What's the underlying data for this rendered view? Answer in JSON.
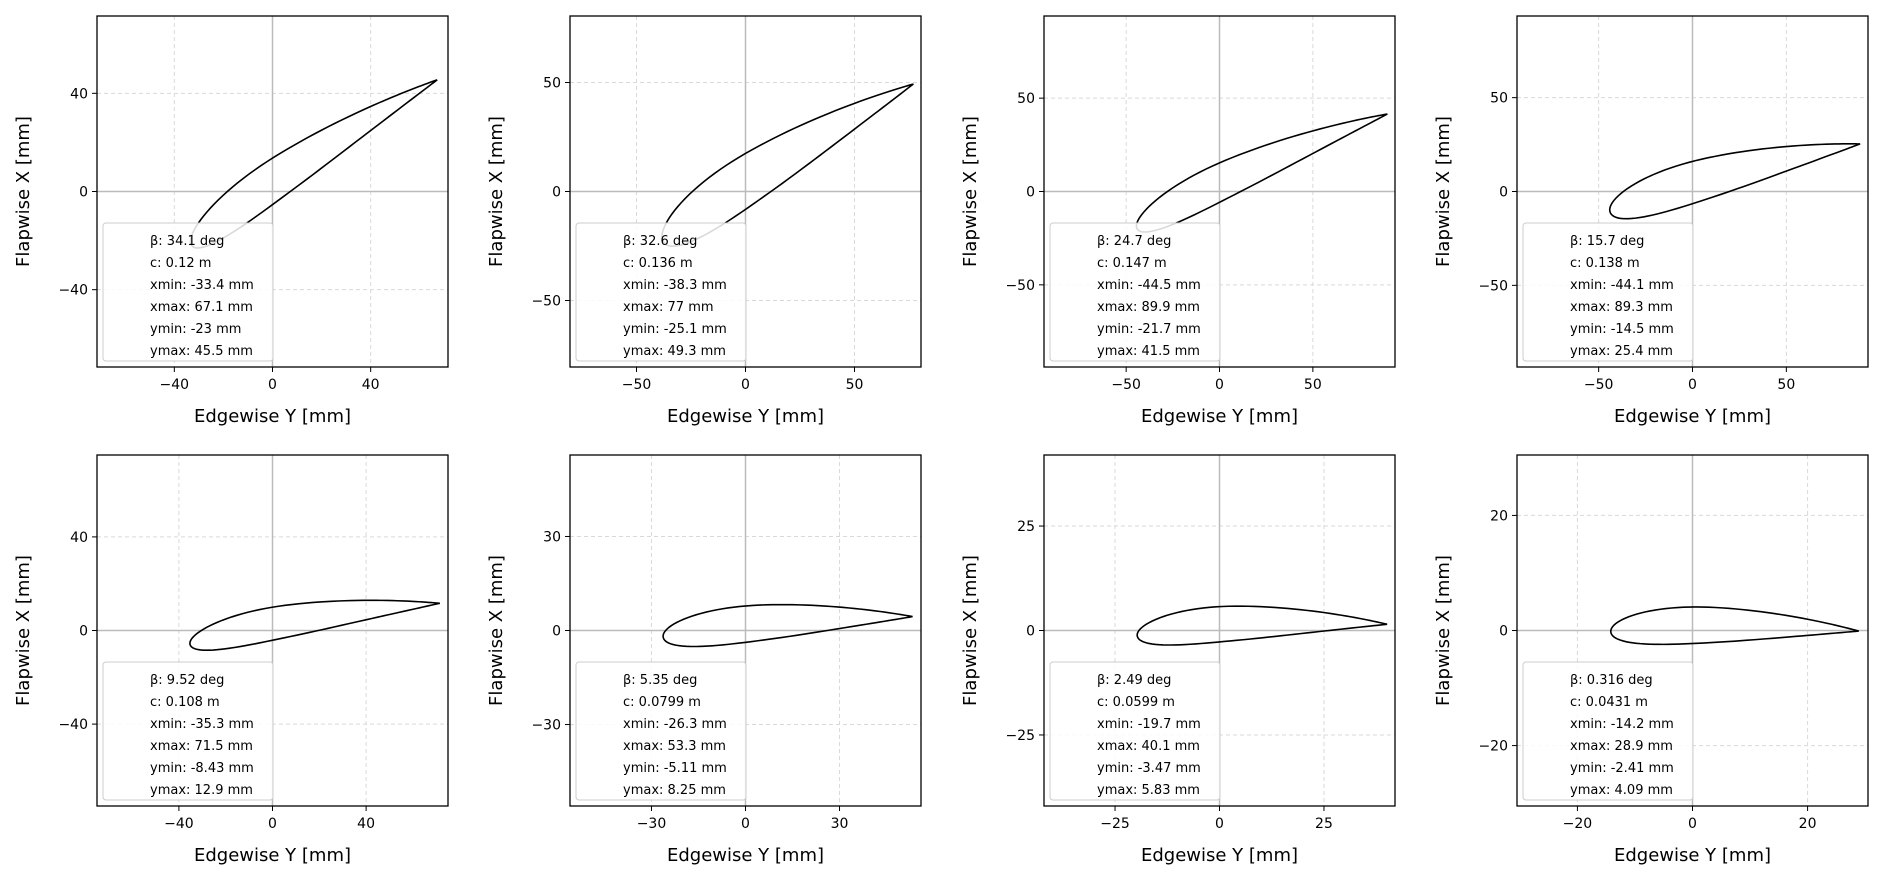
{
  "figure": {
    "xlabel": "Edgewise Y [mm]",
    "ylabel": "Flapwise X [mm]",
    "colors": {
      "curve": "#000000",
      "grid": "#d9d9d9",
      "zero_line": "#bbbbbb",
      "legend_border": "#cccccc"
    }
  },
  "chart_data": [
    {
      "type": "line",
      "xlabel": "Edgewise Y [mm]",
      "ylabel": "Flapwise X [mm]",
      "xlim": [
        -71.5,
        71.5
      ],
      "ylim": [
        -71.5,
        71.5
      ],
      "xticks": [
        -40,
        0,
        40
      ],
      "yticks": [
        -40,
        0,
        40
      ],
      "grid": true,
      "legend_placement": "lower-left",
      "annotation": [
        "β: 34.1 deg",
        "c: 0.12 m",
        "xmin: -33.4 mm",
        "xmax: 67.1 mm",
        "ymin: -23 mm",
        "ymax: 45.5 mm"
      ],
      "beta_deg": 34.1,
      "chord_m": 0.12,
      "xmin": -33.4,
      "xmax": 67.1,
      "ymin": -23,
      "ymax": 45.5
    },
    {
      "type": "line",
      "xlabel": "Edgewise Y [mm]",
      "ylabel": "Flapwise X [mm]",
      "xlim": [
        -80.5,
        80.5
      ],
      "ylim": [
        -80.5,
        80.5
      ],
      "xticks": [
        -50,
        0,
        50
      ],
      "yticks": [
        -50,
        0,
        50
      ],
      "grid": true,
      "legend_placement": "lower-left",
      "annotation": [
        "β: 32.6 deg",
        "c: 0.136 m",
        "xmin: -38.3 mm",
        "xmax: 77 mm",
        "ymin: -25.1 mm",
        "ymax: 49.3 mm"
      ],
      "beta_deg": 32.6,
      "chord_m": 0.136,
      "xmin": -38.3,
      "xmax": 77,
      "ymin": -25.1,
      "ymax": 49.3
    },
    {
      "type": "line",
      "xlabel": "Edgewise Y [mm]",
      "ylabel": "Flapwise X [mm]",
      "xlim": [
        -94,
        94
      ],
      "ylim": [
        -94,
        94
      ],
      "xticks": [
        -50,
        0,
        50
      ],
      "yticks": [
        -50,
        0,
        50
      ],
      "grid": true,
      "legend_placement": "lower-left",
      "annotation": [
        "β: 24.7 deg",
        "c: 0.147 m",
        "xmin: -44.5 mm",
        "xmax: 89.9 mm",
        "ymin: -21.7 mm",
        "ymax: 41.5 mm"
      ],
      "beta_deg": 24.7,
      "chord_m": 0.147,
      "xmin": -44.5,
      "xmax": 89.9,
      "ymin": -21.7,
      "ymax": 41.5
    },
    {
      "type": "line",
      "xlabel": "Edgewise Y [mm]",
      "ylabel": "Flapwise X [mm]",
      "xlim": [
        -93.5,
        93.5
      ],
      "ylim": [
        -93.5,
        93.5
      ],
      "xticks": [
        -50,
        0,
        50
      ],
      "yticks": [
        -50,
        0,
        50
      ],
      "grid": true,
      "legend_placement": "lower-left",
      "annotation": [
        "β: 15.7 deg",
        "c: 0.138 m",
        "xmin: -44.1 mm",
        "xmax: 89.3 mm",
        "ymin: -14.5 mm",
        "ymax: 25.4 mm"
      ],
      "beta_deg": 15.7,
      "chord_m": 0.138,
      "xmin": -44.1,
      "xmax": 89.3,
      "ymin": -14.5,
      "ymax": 25.4
    },
    {
      "type": "line",
      "xlabel": "Edgewise Y [mm]",
      "ylabel": "Flapwise X [mm]",
      "xlim": [
        -75,
        75
      ],
      "ylim": [
        -75,
        75
      ],
      "xticks": [
        -40,
        0,
        40
      ],
      "yticks": [
        -40,
        0,
        40
      ],
      "grid": true,
      "legend_placement": "lower-left",
      "annotation": [
        "β: 9.52 deg",
        "c: 0.108 m",
        "xmin: -35.3 mm",
        "xmax: 71.5 mm",
        "ymin: -8.43 mm",
        "ymax: 12.9 mm"
      ],
      "beta_deg": 9.52,
      "chord_m": 0.108,
      "xmin": -35.3,
      "xmax": 71.5,
      "ymin": -8.43,
      "ymax": 12.9
    },
    {
      "type": "line",
      "xlabel": "Edgewise Y [mm]",
      "ylabel": "Flapwise X [mm]",
      "xlim": [
        -56,
        56
      ],
      "ylim": [
        -56,
        56
      ],
      "xticks": [
        -30,
        0,
        30
      ],
      "yticks": [
        -30,
        0,
        30
      ],
      "grid": true,
      "legend_placement": "lower-left",
      "annotation": [
        "β: 5.35 deg",
        "c: 0.0799 m",
        "xmin: -26.3 mm",
        "xmax: 53.3 mm",
        "ymin: -5.11 mm",
        "ymax: 8.25 mm"
      ],
      "beta_deg": 5.35,
      "chord_m": 0.0799,
      "xmin": -26.3,
      "xmax": 53.3,
      "ymin": -5.11,
      "ymax": 8.25
    },
    {
      "type": "line",
      "xlabel": "Edgewise Y [mm]",
      "ylabel": "Flapwise X [mm]",
      "xlim": [
        -42,
        42
      ],
      "ylim": [
        -42,
        42
      ],
      "xticks": [
        -25,
        0,
        25
      ],
      "yticks": [
        -25,
        0,
        25
      ],
      "grid": true,
      "legend_placement": "lower-left",
      "annotation": [
        "β: 2.49 deg",
        "c: 0.0599 m",
        "xmin: -19.7 mm",
        "xmax: 40.1 mm",
        "ymin: -3.47 mm",
        "ymax: 5.83 mm"
      ],
      "beta_deg": 2.49,
      "chord_m": 0.0599,
      "xmin": -19.7,
      "xmax": 40.1,
      "ymin": -3.47,
      "ymax": 5.83
    },
    {
      "type": "line",
      "xlabel": "Edgewise Y [mm]",
      "ylabel": "Flapwise X [mm]",
      "xlim": [
        -30.5,
        30.5
      ],
      "ylim": [
        -30.5,
        30.5
      ],
      "xticks": [
        -20,
        0,
        20
      ],
      "yticks": [
        -20,
        0,
        20
      ],
      "grid": true,
      "legend_placement": "lower-left",
      "annotation": [
        "β: 0.316 deg",
        "c: 0.0431 m",
        "xmin: -14.2 mm",
        "xmax: 28.9 mm",
        "ymin: -2.41 mm",
        "ymax: 4.09 mm"
      ],
      "beta_deg": 0.316,
      "chord_m": 0.0431,
      "xmin": -14.2,
      "xmax": 28.9,
      "ymin": -2.41,
      "ymax": 4.09
    }
  ]
}
